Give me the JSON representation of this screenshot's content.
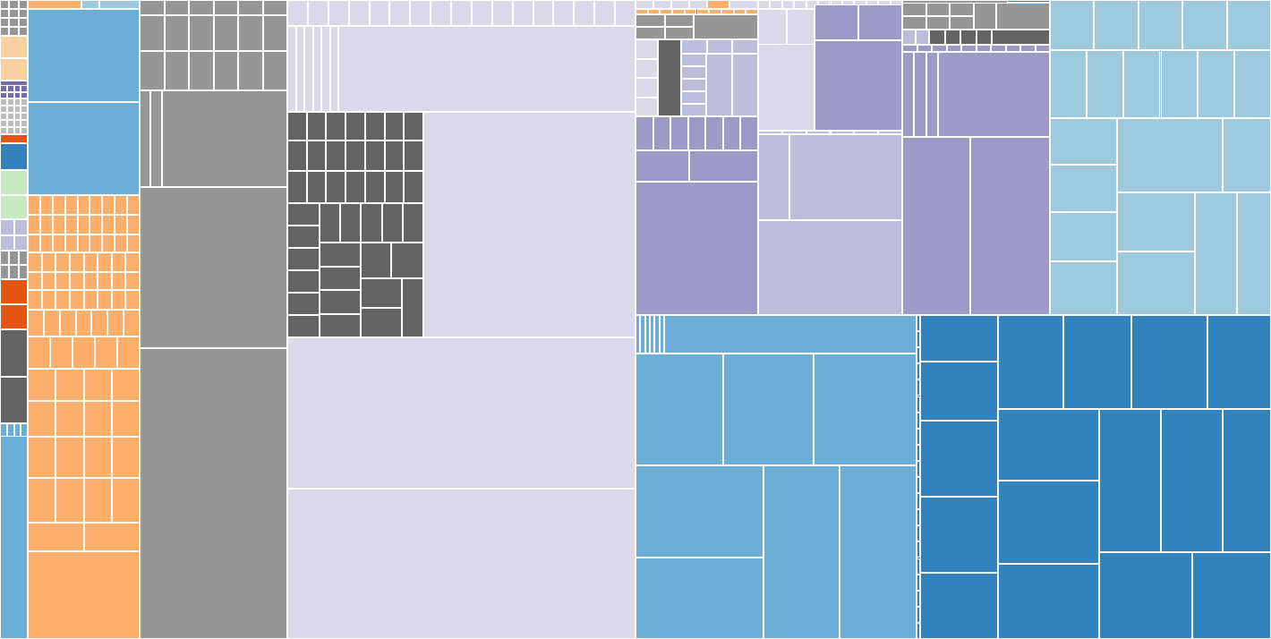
{
  "chart_data": {
    "type": "treemap",
    "title": "",
    "colors": {
      "blue_light": "#9ecae1",
      "blue_mid": "#6baed6",
      "blue_dark": "#3182bd",
      "orange": "#fdae6b",
      "orange_light": "#fdd0a2",
      "orange_dark": "#e6550d",
      "gray": "#969696",
      "gray_dark": "#636363",
      "gray_light": "#bdbdbd",
      "purple_light": "#dadaeb",
      "purple_mid": "#bcbddc",
      "purple": "#9e9ac8",
      "purple_dark": "#756bb1",
      "green_light": "#c7e9c0"
    },
    "groups": [
      {
        "color": "gray",
        "weight": 1
      },
      {
        "color": "orange_light",
        "weight": 1
      },
      {
        "color": "purple_dark",
        "weight": 1
      },
      {
        "color": "gray",
        "weight": 1
      },
      {
        "color": "blue_dark",
        "weight": 1
      },
      {
        "color": "green_light",
        "weight": 3
      },
      {
        "color": "purple_mid",
        "weight": 1
      },
      {
        "color": "gray",
        "weight": 1
      },
      {
        "color": "orange_dark",
        "weight": 2
      },
      {
        "color": "gray_dark",
        "weight": 4
      },
      {
        "color": "blue_mid",
        "weight": 6
      },
      {
        "color": "blue_mid",
        "weight": 20
      },
      {
        "color": "orange",
        "weight": 45
      },
      {
        "color": "gray",
        "weight": 60
      },
      {
        "color": "gray_dark",
        "weight": 30
      },
      {
        "color": "purple_light",
        "weight": 110
      },
      {
        "color": "gray",
        "weight": 8
      },
      {
        "color": "purple",
        "weight": 20
      },
      {
        "color": "purple_mid",
        "weight": 25
      },
      {
        "color": "purple",
        "weight": 35
      },
      {
        "color": "blue_light",
        "weight": 45
      },
      {
        "color": "blue_mid",
        "weight": 60
      },
      {
        "color": "blue_dark",
        "weight": 65
      }
    ]
  }
}
